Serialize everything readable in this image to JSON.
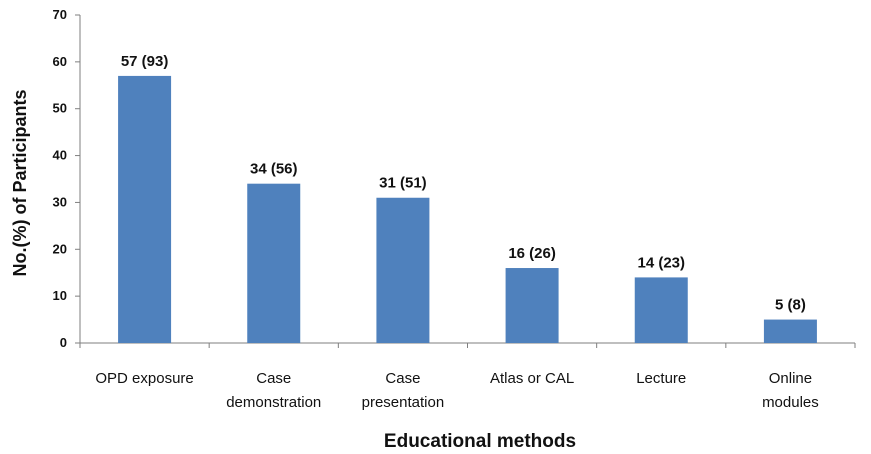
{
  "chart_data": {
    "type": "bar",
    "categories": [
      [
        "OPD exposure"
      ],
      [
        "Case",
        "demonstration"
      ],
      [
        "Case",
        "presentation"
      ],
      [
        "Atlas or CAL"
      ],
      [
        "Lecture"
      ],
      [
        "Online",
        "modules"
      ]
    ],
    "values": [
      57,
      34,
      31,
      16,
      14,
      5
    ],
    "data_labels": [
      "57 (93)",
      "34 (56)",
      "31 (51)",
      "16 (26)",
      "14 (23)",
      "5 (8)"
    ],
    "title": "",
    "xlabel": "Educational methods",
    "ylabel": "No.(%) of Participants",
    "ylim": [
      0,
      70
    ],
    "yticks": [
      0,
      10,
      20,
      30,
      40,
      50,
      60,
      70
    ],
    "grid": false,
    "legend": "none",
    "bar_color": "#4f81bd"
  }
}
